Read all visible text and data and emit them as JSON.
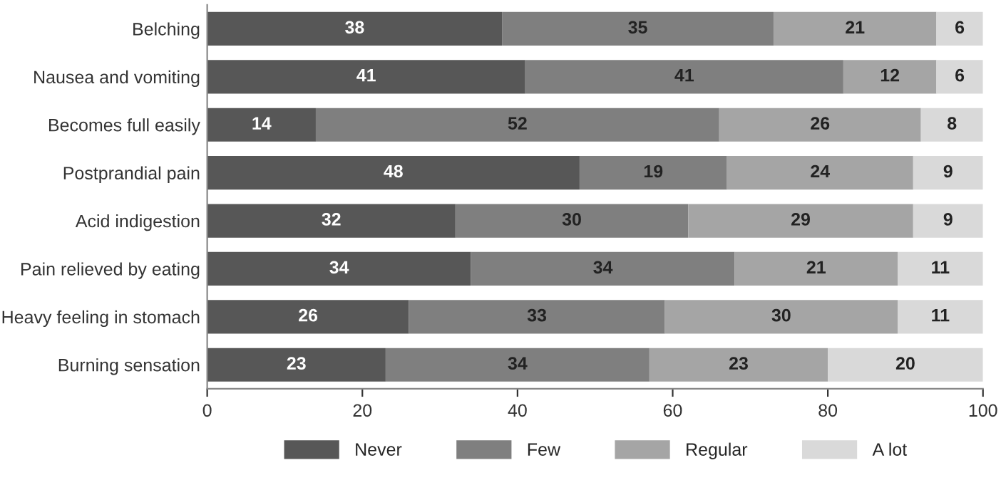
{
  "chart_data": {
    "type": "bar",
    "orientation": "horizontal",
    "stacked": true,
    "data_labels": true,
    "legend": "bottom",
    "grid": false,
    "categories": [
      "Belching",
      "Nausea and vomiting",
      "Becomes full easily",
      "Postprandial pain",
      "Acid indigestion",
      "Pain relieved by eating",
      "Heavy feeling in stomach",
      "Burning sensation"
    ],
    "series": [
      {
        "name": "Never",
        "color": "#575757",
        "values": [
          38,
          41,
          14,
          48,
          32,
          34,
          26,
          23
        ]
      },
      {
        "name": "Few",
        "color": "#7f7f7f",
        "values": [
          35,
          41,
          52,
          19,
          30,
          34,
          33,
          34
        ]
      },
      {
        "name": "Regular",
        "color": "#a5a5a5",
        "values": [
          21,
          12,
          26,
          24,
          29,
          21,
          30,
          23
        ]
      },
      {
        "name": "A lot",
        "color": "#d9d9d9",
        "values": [
          6,
          6,
          8,
          9,
          9,
          11,
          11,
          20
        ]
      }
    ],
    "xlim": [
      0,
      100
    ],
    "xticks": [
      0,
      20,
      40,
      60,
      80,
      100
    ]
  }
}
